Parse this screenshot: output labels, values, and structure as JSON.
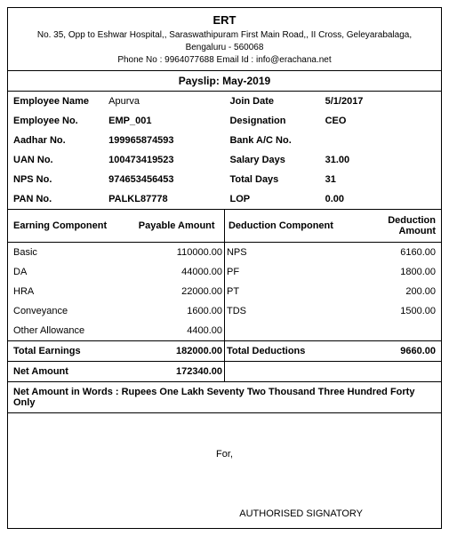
{
  "company": "ERT",
  "address_line1": "No. 35, Opp to Eshwar Hospital,, Saraswathipuram First Main Road,, II Cross, Geleyarabalaga,",
  "address_line2": "Bengaluru - 560068",
  "phone": "9964077688",
  "email": "info@erachana.net",
  "contact_line": "Phone No : 9964077688   Email Id : info@erachana.net",
  "payslip_title": "Payslip: May-2019",
  "info": {
    "emp_name_lbl": "Employee Name",
    "emp_name": "Apurva",
    "join_date_lbl": "Join Date",
    "join_date": "5/1/2017",
    "emp_no_lbl": "Employee No.",
    "emp_no": "EMP_001",
    "designation_lbl": "Designation",
    "designation": "CEO",
    "aadhar_lbl": "Aadhar No.",
    "aadhar": "199965874593",
    "bank_lbl": "Bank A/C No.",
    "bank": "",
    "uan_lbl": "UAN No.",
    "uan": "100473419523",
    "sal_days_lbl": "Salary Days",
    "sal_days": "31.00",
    "nps_lbl": "NPS No.",
    "nps": "974653456453",
    "tot_days_lbl": "Total Days",
    "tot_days": "31",
    "pan_lbl": "PAN No.",
    "pan": "PALKL87778",
    "lop_lbl": "LOP",
    "lop": "0.00"
  },
  "ed_headers": {
    "earn_comp": "Earning Component",
    "pay_amt": "Payable Amount",
    "ded_comp": "Deduction Component",
    "ded_amt": "Deduction Amount"
  },
  "rows": [
    {
      "ec": "Basic",
      "ea": "110000.00",
      "dc": "NPS",
      "da": "6160.00"
    },
    {
      "ec": "DA",
      "ea": "44000.00",
      "dc": "PF",
      "da": "1800.00"
    },
    {
      "ec": "HRA",
      "ea": "22000.00",
      "dc": "PT",
      "da": "200.00"
    },
    {
      "ec": "Conveyance",
      "ea": "1600.00",
      "dc": "TDS",
      "da": "1500.00"
    },
    {
      "ec": "Other Allowance",
      "ea": "4400.00",
      "dc": "",
      "da": ""
    }
  ],
  "totals": {
    "te_lbl": "Total Earnings",
    "te": "182000.00",
    "td_lbl": "Total Deductions",
    "td": "9660.00",
    "net_lbl": "Net Amount",
    "net": "172340.00"
  },
  "words_lbl": "Net Amount in Words :",
  "words": "Rupees One Lakh Seventy Two Thousand Three Hundred Forty Only",
  "for_lbl": "For,",
  "auth_lbl": "AUTHORISED SIGNATORY"
}
